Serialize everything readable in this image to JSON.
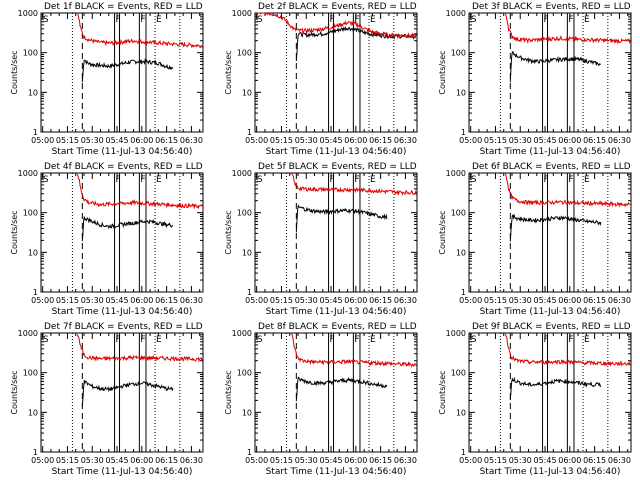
{
  "colors": {
    "events": "#000000",
    "lld": "#e00000",
    "axes": "#000000"
  },
  "axis_shared": {
    "x_ticks": [
      "05:00",
      "05:15",
      "05:30",
      "05:45",
      "06:00",
      "06:15",
      "06:30"
    ],
    "x_tick_minutes": [
      0,
      15,
      30,
      45,
      60,
      75,
      90
    ],
    "xlim_minutes": [
      -1,
      97
    ],
    "y_ticks": [
      "1",
      "10",
      "100",
      "1000"
    ],
    "y_tick_values": [
      1,
      10,
      100,
      1000
    ],
    "ylim": [
      1,
      1000
    ],
    "xlabel": "Start Time (11-Jul-13 04:56:40)",
    "ylabel": "Counts/sec",
    "markers": {
      "dotted_minutes": [
        18,
        68,
        83
      ],
      "dashed_minute": 24,
      "solid_minutes": [
        43.5,
        46.5,
        58.5,
        62.5
      ],
      "letters": [
        {
          "text": "S",
          "minute": -0.5
        },
        {
          "text": "F",
          "minute": 43.5
        },
        {
          "text": "F",
          "minute": 58.5
        },
        {
          "text": "E",
          "minute": 68
        }
      ]
    }
  },
  "chart_data": [
    {
      "type": "line",
      "title": "Det 1f BLACK = Events, RED = LLD",
      "series": [
        {
          "name": "Events",
          "color": "#000000",
          "start_min": 24,
          "end_min": 79,
          "x": [
            24,
            25,
            27,
            30,
            35,
            40,
            45,
            50,
            55,
            60,
            65,
            70,
            75,
            79
          ],
          "values": [
            18,
            70,
            55,
            50,
            48,
            46,
            50,
            55,
            60,
            60,
            58,
            55,
            45,
            42
          ]
        },
        {
          "name": "LLD",
          "color": "#e00000",
          "start_min": 21,
          "end_min": 97,
          "x": [
            21,
            22,
            23,
            25,
            28,
            32,
            36,
            40,
            45,
            50,
            55,
            60,
            65,
            70,
            75,
            80,
            90,
            97
          ],
          "values": [
            1000,
            700,
            400,
            250,
            210,
            190,
            180,
            175,
            180,
            190,
            200,
            190,
            185,
            175,
            170,
            165,
            155,
            150
          ]
        }
      ]
    },
    {
      "type": "line",
      "title": "Det 2f BLACK = Events, RED = LLD",
      "series": [
        {
          "name": "Events",
          "color": "#000000",
          "start_min": 24,
          "end_min": 97,
          "x": [
            24,
            25,
            30,
            35,
            40,
            45,
            48,
            50,
            55,
            60,
            65,
            70,
            80,
            90,
            97
          ],
          "values": [
            60,
            300,
            280,
            290,
            300,
            330,
            360,
            380,
            420,
            380,
            320,
            290,
            260,
            260,
            255
          ]
        },
        {
          "name": "LLD",
          "color": "#e00000",
          "start_min": 0,
          "end_min": 97,
          "x": [
            0,
            6,
            12,
            16,
            20,
            23,
            26,
            30,
            35,
            40,
            45,
            50,
            55,
            60,
            65,
            70,
            80,
            90,
            97
          ],
          "values": [
            1000,
            1000,
            900,
            750,
            500,
            380,
            360,
            360,
            370,
            400,
            430,
            500,
            570,
            530,
            410,
            330,
            280,
            270,
            265
          ]
        }
      ]
    },
    {
      "type": "line",
      "title": "Det 3f BLACK = Events, RED = LLD",
      "series": [
        {
          "name": "Events",
          "color": "#000000",
          "start_min": 24,
          "end_min": 79,
          "x": [
            24,
            25,
            30,
            35,
            40,
            45,
            50,
            55,
            60,
            65,
            70,
            75,
            79
          ],
          "values": [
            20,
            100,
            75,
            65,
            60,
            62,
            65,
            68,
            70,
            68,
            62,
            55,
            50
          ]
        },
        {
          "name": "LLD",
          "color": "#e00000",
          "start_min": 21,
          "end_min": 97,
          "x": [
            21,
            22,
            23,
            25,
            28,
            35,
            45,
            55,
            65,
            75,
            85,
            97
          ],
          "values": [
            1000,
            700,
            400,
            260,
            220,
            205,
            220,
            230,
            215,
            210,
            200,
            195
          ]
        }
      ]
    },
    {
      "type": "line",
      "title": "Det 4f BLACK = Events, RED = LLD",
      "series": [
        {
          "name": "Events",
          "color": "#000000",
          "start_min": 24,
          "end_min": 79,
          "x": [
            24,
            25,
            30,
            35,
            40,
            45,
            50,
            55,
            60,
            65,
            70,
            75,
            79
          ],
          "values": [
            20,
            75,
            60,
            50,
            45,
            48,
            52,
            55,
            60,
            60,
            55,
            50,
            48
          ]
        },
        {
          "name": "LLD",
          "color": "#e00000",
          "start_min": 21,
          "end_min": 97,
          "x": [
            21,
            22,
            23,
            25,
            28,
            35,
            45,
            55,
            65,
            75,
            85,
            97
          ],
          "values": [
            1000,
            700,
            400,
            220,
            180,
            160,
            170,
            180,
            170,
            160,
            150,
            145
          ]
        }
      ]
    },
    {
      "type": "line",
      "title": "Det 5f BLACK = Events, RED = LLD",
      "series": [
        {
          "name": "Events",
          "color": "#000000",
          "start_min": 24,
          "end_min": 79,
          "x": [
            24,
            25,
            30,
            35,
            40,
            45,
            50,
            55,
            60,
            65,
            70,
            75,
            79
          ],
          "values": [
            35,
            140,
            120,
            110,
            105,
            108,
            112,
            115,
            110,
            100,
            90,
            80,
            78
          ]
        },
        {
          "name": "LLD",
          "color": "#e00000",
          "start_min": 21,
          "end_min": 97,
          "x": [
            21,
            22,
            23,
            25,
            28,
            35,
            45,
            55,
            65,
            75,
            85,
            97
          ],
          "values": [
            1000,
            800,
            550,
            420,
            400,
            390,
            380,
            380,
            370,
            350,
            330,
            320
          ]
        }
      ]
    },
    {
      "type": "line",
      "title": "Det 6f BLACK = Events, RED = LLD",
      "series": [
        {
          "name": "Events",
          "color": "#000000",
          "start_min": 24,
          "end_min": 79,
          "x": [
            24,
            25,
            30,
            35,
            40,
            45,
            50,
            55,
            60,
            65,
            70,
            75,
            79
          ],
          "values": [
            20,
            80,
            70,
            65,
            65,
            68,
            72,
            75,
            70,
            65,
            60,
            58,
            55
          ]
        },
        {
          "name": "LLD",
          "color": "#e00000",
          "start_min": 21,
          "end_min": 97,
          "x": [
            21,
            22,
            23,
            25,
            28,
            35,
            45,
            55,
            65,
            75,
            85,
            97
          ],
          "values": [
            1000,
            700,
            400,
            240,
            200,
            180,
            180,
            185,
            175,
            170,
            165,
            160
          ]
        }
      ]
    },
    {
      "type": "line",
      "title": "Det 7f BLACK = Events, RED = LLD",
      "series": [
        {
          "name": "Events",
          "color": "#000000",
          "start_min": 24,
          "end_min": 79,
          "x": [
            24,
            25,
            30,
            35,
            40,
            45,
            50,
            55,
            60,
            65,
            70,
            75,
            79
          ],
          "values": [
            15,
            60,
            45,
            40,
            38,
            42,
            48,
            52,
            55,
            50,
            45,
            40,
            38
          ]
        },
        {
          "name": "LLD",
          "color": "#e00000",
          "start_min": 21,
          "end_min": 97,
          "x": [
            21,
            22,
            23,
            25,
            28,
            35,
            45,
            55,
            65,
            75,
            85,
            97
          ],
          "values": [
            1000,
            700,
            450,
            280,
            240,
            225,
            230,
            240,
            235,
            230,
            225,
            220
          ]
        }
      ]
    },
    {
      "type": "line",
      "title": "Det 8f BLACK = Events, RED = LLD",
      "series": [
        {
          "name": "Events",
          "color": "#000000",
          "start_min": 24,
          "end_min": 79,
          "x": [
            24,
            25,
            30,
            35,
            40,
            45,
            50,
            55,
            60,
            65,
            70,
            75,
            79
          ],
          "values": [
            20,
            70,
            60,
            55,
            55,
            58,
            62,
            65,
            62,
            58,
            52,
            48,
            47
          ]
        },
        {
          "name": "LLD",
          "color": "#e00000",
          "start_min": 21,
          "end_min": 97,
          "x": [
            21,
            22,
            23,
            25,
            28,
            35,
            45,
            55,
            65,
            75,
            85,
            97
          ],
          "values": [
            1000,
            700,
            400,
            230,
            200,
            185,
            185,
            190,
            180,
            175,
            165,
            160
          ]
        }
      ]
    },
    {
      "type": "line",
      "title": "Det 9f BLACK = Events, RED = LLD",
      "series": [
        {
          "name": "Events",
          "color": "#000000",
          "start_min": 24,
          "end_min": 79,
          "x": [
            24,
            25,
            30,
            35,
            40,
            45,
            50,
            55,
            60,
            65,
            70,
            75,
            79
          ],
          "values": [
            20,
            70,
            55,
            50,
            50,
            55,
            60,
            62,
            60,
            55,
            52,
            50,
            50
          ]
        },
        {
          "name": "LLD",
          "color": "#e00000",
          "start_min": 21,
          "end_min": 97,
          "x": [
            21,
            22,
            23,
            25,
            28,
            35,
            45,
            55,
            65,
            75,
            85,
            97
          ],
          "values": [
            1000,
            700,
            400,
            240,
            200,
            185,
            185,
            190,
            180,
            175,
            170,
            170
          ]
        }
      ]
    }
  ]
}
